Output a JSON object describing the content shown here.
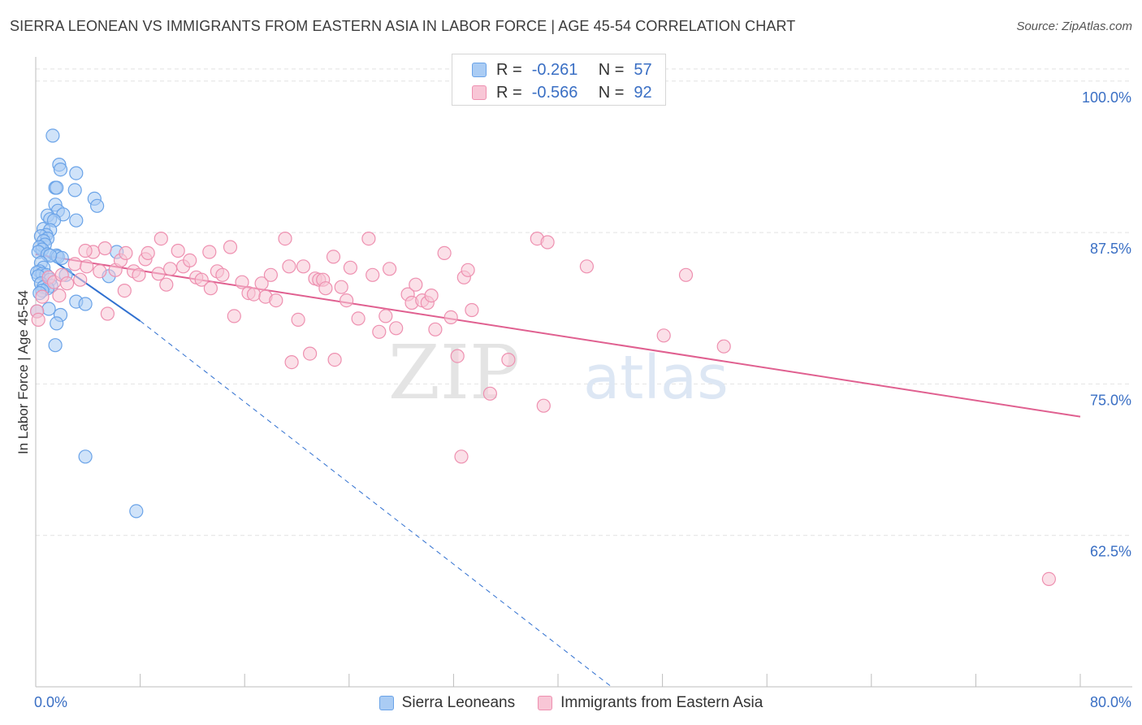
{
  "chart_data": {
    "type": "scatter",
    "title": "SIERRA LEONEAN VS IMMIGRANTS FROM EASTERN ASIA IN LABOR FORCE | AGE 45-54 CORRELATION CHART",
    "source": "Source: ZipAtlas.com",
    "xlabel": "",
    "ylabel": "In Labor Force | Age 45-54",
    "xlim": [
      0,
      80
    ],
    "ylim": [
      50,
      102
    ],
    "x_tick_labels": [
      "0.0%",
      "80.0%"
    ],
    "y_ticks": [
      100,
      87.5,
      75,
      62.5
    ],
    "y_tick_labels": [
      "100.0%",
      "87.5%",
      "75.0%",
      "62.5%"
    ],
    "watermark": "ZIPatlas",
    "legend_stats": [
      {
        "r_label": "R =",
        "r": "-0.261",
        "n_label": "N =",
        "n": "57"
      },
      {
        "r_label": "R =",
        "r": "-0.566",
        "n_label": "N =",
        "n": "92"
      }
    ],
    "series": [
      {
        "name": "Sierra Leoneans",
        "color": "#6aa3e8",
        "fill": "#aaccf4",
        "line_color": "#3070d0",
        "trend": {
          "x0": 0,
          "y0": 86.2,
          "x1": 8,
          "y1": 80.2,
          "dash_to_x": 44.1,
          "dash_to_y": 50
        },
        "points": [
          [
            1.3,
            95.5
          ],
          [
            1.8,
            93.1
          ],
          [
            1.9,
            92.7
          ],
          [
            3.1,
            92.4
          ],
          [
            1.5,
            91.2
          ],
          [
            1.6,
            91.2
          ],
          [
            3.0,
            91.0
          ],
          [
            4.5,
            90.3
          ],
          [
            4.7,
            89.7
          ],
          [
            1.5,
            89.8
          ],
          [
            1.7,
            89.3
          ],
          [
            2.1,
            89.0
          ],
          [
            0.9,
            88.9
          ],
          [
            1.1,
            88.6
          ],
          [
            3.1,
            88.5
          ],
          [
            1.4,
            88.5
          ],
          [
            0.6,
            87.8
          ],
          [
            1.1,
            87.7
          ],
          [
            0.8,
            87.3
          ],
          [
            0.4,
            87.2
          ],
          [
            0.9,
            87.0
          ],
          [
            0.6,
            86.8
          ],
          [
            0.7,
            86.5
          ],
          [
            0.3,
            86.3
          ],
          [
            0.5,
            86.1
          ],
          [
            0.2,
            85.9
          ],
          [
            0.9,
            85.7
          ],
          [
            1.6,
            85.6
          ],
          [
            1.7,
            85.5
          ],
          [
            2.0,
            85.4
          ],
          [
            6.2,
            85.9
          ],
          [
            1.1,
            85.6
          ],
          [
            0.4,
            85.0
          ],
          [
            0.6,
            84.6
          ],
          [
            0.3,
            84.3
          ],
          [
            0.1,
            84.2
          ],
          [
            0.5,
            84.1
          ],
          [
            0.8,
            84.0
          ],
          [
            0.2,
            83.9
          ],
          [
            2.3,
            84.0
          ],
          [
            1.1,
            83.6
          ],
          [
            0.4,
            83.3
          ],
          [
            0.6,
            83.0
          ],
          [
            1.2,
            83.1
          ],
          [
            5.6,
            83.9
          ],
          [
            0.9,
            82.9
          ],
          [
            0.5,
            82.7
          ],
          [
            0.3,
            82.5
          ],
          [
            3.1,
            81.8
          ],
          [
            3.8,
            81.6
          ],
          [
            1.0,
            81.2
          ],
          [
            1.9,
            80.7
          ],
          [
            1.6,
            80.0
          ],
          [
            1.5,
            78.2
          ],
          [
            3.8,
            69.0
          ],
          [
            7.7,
            64.5
          ],
          [
            0.1,
            81.0
          ]
        ]
      },
      {
        "name": "Immigrants from Eastern Asia",
        "color": "#ee90b0",
        "fill": "#f8c6d6",
        "line_color": "#e06090",
        "trend": {
          "x0": 0,
          "y0": 85.7,
          "x1": 80,
          "y1": 72.3
        },
        "points": [
          [
            0.1,
            81.0
          ],
          [
            0.5,
            82.2
          ],
          [
            1.0,
            83.8
          ],
          [
            1.4,
            83.4
          ],
          [
            2.0,
            84.0
          ],
          [
            2.4,
            83.3
          ],
          [
            3.0,
            84.9
          ],
          [
            3.4,
            83.6
          ],
          [
            3.9,
            84.7
          ],
          [
            4.4,
            85.9
          ],
          [
            4.9,
            84.3
          ],
          [
            5.3,
            86.2
          ],
          [
            5.5,
            80.8
          ],
          [
            6.1,
            84.4
          ],
          [
            6.5,
            85.2
          ],
          [
            6.9,
            85.8
          ],
          [
            7.5,
            84.3
          ],
          [
            7.9,
            84.0
          ],
          [
            8.4,
            85.3
          ],
          [
            8.6,
            85.8
          ],
          [
            9.4,
            84.1
          ],
          [
            9.6,
            87.0
          ],
          [
            10.0,
            83.2
          ],
          [
            10.3,
            84.5
          ],
          [
            10.9,
            86.0
          ],
          [
            11.3,
            84.7
          ],
          [
            11.8,
            85.2
          ],
          [
            12.3,
            83.8
          ],
          [
            12.7,
            83.6
          ],
          [
            13.3,
            85.9
          ],
          [
            13.4,
            82.9
          ],
          [
            13.9,
            84.3
          ],
          [
            14.3,
            84.0
          ],
          [
            14.9,
            86.3
          ],
          [
            15.2,
            80.6
          ],
          [
            15.8,
            83.4
          ],
          [
            16.3,
            82.5
          ],
          [
            16.7,
            82.4
          ],
          [
            17.3,
            83.3
          ],
          [
            17.6,
            82.2
          ],
          [
            18.0,
            84.0
          ],
          [
            18.4,
            81.9
          ],
          [
            19.1,
            87.0
          ],
          [
            19.4,
            84.7
          ],
          [
            19.6,
            76.8
          ],
          [
            20.1,
            80.3
          ],
          [
            20.5,
            84.7
          ],
          [
            21.0,
            77.5
          ],
          [
            21.4,
            83.7
          ],
          [
            21.7,
            83.6
          ],
          [
            22.0,
            83.6
          ],
          [
            22.2,
            82.9
          ],
          [
            22.8,
            85.5
          ],
          [
            22.9,
            77.0
          ],
          [
            23.4,
            83.0
          ],
          [
            23.8,
            81.9
          ],
          [
            24.1,
            84.6
          ],
          [
            24.7,
            80.4
          ],
          [
            25.5,
            87.0
          ],
          [
            25.8,
            84.0
          ],
          [
            26.3,
            79.3
          ],
          [
            26.8,
            80.6
          ],
          [
            27.1,
            84.5
          ],
          [
            27.6,
            79.6
          ],
          [
            28.5,
            82.4
          ],
          [
            28.8,
            81.7
          ],
          [
            29.1,
            83.2
          ],
          [
            29.6,
            81.9
          ],
          [
            30.0,
            81.7
          ],
          [
            30.3,
            82.3
          ],
          [
            30.6,
            79.5
          ],
          [
            31.3,
            85.8
          ],
          [
            31.8,
            80.5
          ],
          [
            32.3,
            77.3
          ],
          [
            32.6,
            69.0
          ],
          [
            32.8,
            83.8
          ],
          [
            33.1,
            84.4
          ],
          [
            33.4,
            81.1
          ],
          [
            34.8,
            74.2
          ],
          [
            36.2,
            77.0
          ],
          [
            38.4,
            87.0
          ],
          [
            38.9,
            73.2
          ],
          [
            39.2,
            86.7
          ],
          [
            42.2,
            84.7
          ],
          [
            48.1,
            79.0
          ],
          [
            49.8,
            84.0
          ],
          [
            52.7,
            78.1
          ],
          [
            77.6,
            58.9
          ],
          [
            0.2,
            80.3
          ],
          [
            1.8,
            82.3
          ],
          [
            6.8,
            82.7
          ],
          [
            3.8,
            86.0
          ]
        ]
      }
    ]
  }
}
